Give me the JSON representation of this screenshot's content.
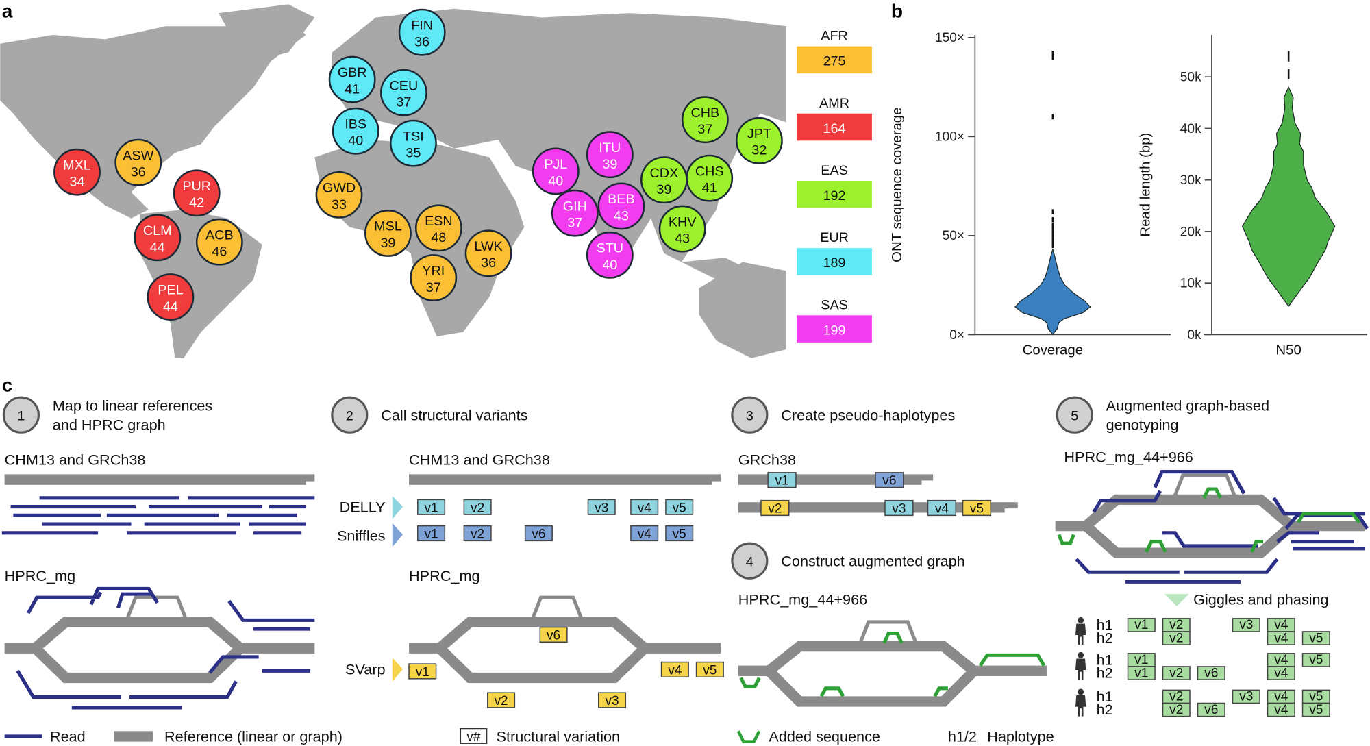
{
  "panel_labels": {
    "a": "a",
    "b": "b",
    "c": "c"
  },
  "colors": {
    "AFR": "#fbbf36",
    "AMR": "#f03c3c",
    "EAS": "#9df02c",
    "EUR": "#5fe9f6",
    "SAS": "#f23cf0",
    "map": "#a8a8a8",
    "read": "#2b2f86",
    "reference": "#8a8a8a",
    "added": "#2ea035",
    "coverage_violin": "#3a7fc0",
    "n50_violin": "#4caf47",
    "delly": "#8fd3df",
    "sniffles": "#7fa3d6",
    "svarp": "#f6d44a",
    "genotype": "#a8dca0"
  },
  "map": {
    "populations": [
      {
        "code": "FIN",
        "n": "36",
        "group": "EUR"
      },
      {
        "code": "GBR",
        "n": "41",
        "group": "EUR"
      },
      {
        "code": "CEU",
        "n": "37",
        "group": "EUR"
      },
      {
        "code": "IBS",
        "n": "40",
        "group": "EUR"
      },
      {
        "code": "TSI",
        "n": "35",
        "group": "EUR"
      },
      {
        "code": "MXL",
        "n": "34",
        "group": "AMR"
      },
      {
        "code": "ASW",
        "n": "36",
        "group": "AFR"
      },
      {
        "code": "PUR",
        "n": "42",
        "group": "AMR"
      },
      {
        "code": "CLM",
        "n": "44",
        "group": "AMR"
      },
      {
        "code": "ACB",
        "n": "46",
        "group": "AFR"
      },
      {
        "code": "PEL",
        "n": "44",
        "group": "AMR"
      },
      {
        "code": "GWD",
        "n": "33",
        "group": "AFR"
      },
      {
        "code": "MSL",
        "n": "39",
        "group": "AFR"
      },
      {
        "code": "ESN",
        "n": "48",
        "group": "AFR"
      },
      {
        "code": "LWK",
        "n": "36",
        "group": "AFR"
      },
      {
        "code": "YRI",
        "n": "37",
        "group": "AFR"
      },
      {
        "code": "PJL",
        "n": "40",
        "group": "SAS"
      },
      {
        "code": "ITU",
        "n": "39",
        "group": "SAS"
      },
      {
        "code": "GIH",
        "n": "37",
        "group": "SAS"
      },
      {
        "code": "BEB",
        "n": "43",
        "group": "SAS"
      },
      {
        "code": "STU",
        "n": "40",
        "group": "SAS"
      },
      {
        "code": "CDX",
        "n": "39",
        "group": "EAS"
      },
      {
        "code": "CHS",
        "n": "41",
        "group": "EAS"
      },
      {
        "code": "CHB",
        "n": "37",
        "group": "EAS"
      },
      {
        "code": "JPT",
        "n": "32",
        "group": "EAS"
      },
      {
        "code": "KHV",
        "n": "43",
        "group": "EAS"
      }
    ],
    "legend": [
      {
        "group": "AFR",
        "total": "275"
      },
      {
        "group": "AMR",
        "total": "164"
      },
      {
        "group": "EAS",
        "total": "192"
      },
      {
        "group": "EUR",
        "total": "189"
      },
      {
        "group": "SAS",
        "total": "199"
      }
    ]
  },
  "chart_data": [
    {
      "type": "violin",
      "category": "Coverage",
      "ylabel": "ONT sequence coverage",
      "ylim": [
        0,
        150
      ],
      "yticks": [
        "0×",
        "50×",
        "100×",
        "150×"
      ],
      "ytick_values": [
        0,
        50,
        100,
        150
      ],
      "density_profile": [
        [
          0,
          0
        ],
        [
          3,
          0.12
        ],
        [
          6,
          0.16
        ],
        [
          8,
          0.3
        ],
        [
          11,
          0.8
        ],
        [
          14,
          1.0
        ],
        [
          17,
          0.85
        ],
        [
          21,
          0.55
        ],
        [
          25,
          0.32
        ],
        [
          29,
          0.2
        ],
        [
          34,
          0.12
        ],
        [
          39,
          0.06
        ],
        [
          43,
          0
        ]
      ],
      "outliers": [
        45,
        47,
        49,
        51,
        53,
        55,
        58,
        62,
        110,
        140,
        142
      ]
    },
    {
      "type": "violin",
      "category": "N50",
      "ylabel": "Read length (bp)",
      "ylim": [
        0,
        57000
      ],
      "yticks": [
        "0k",
        "10k",
        "20k",
        "30k",
        "40k",
        "50k"
      ],
      "ytick_values": [
        0,
        10000,
        20000,
        30000,
        40000,
        50000
      ],
      "density_profile": [
        [
          5500,
          0
        ],
        [
          8000,
          0.2
        ],
        [
          11000,
          0.45
        ],
        [
          13500,
          0.6
        ],
        [
          16500,
          0.8
        ],
        [
          18000,
          0.85
        ],
        [
          21000,
          1.0
        ],
        [
          24000,
          0.8
        ],
        [
          26500,
          0.58
        ],
        [
          28500,
          0.5
        ],
        [
          30000,
          0.4
        ],
        [
          33000,
          0.32
        ],
        [
          35500,
          0.32
        ],
        [
          37000,
          0.24
        ],
        [
          39000,
          0.26
        ],
        [
          41000,
          0.14
        ],
        [
          44000,
          0.08
        ],
        [
          46000,
          0.1
        ],
        [
          48000,
          0
        ]
      ],
      "outliers": [
        50000,
        51000,
        53500,
        54500
      ]
    }
  ],
  "steps": [
    {
      "num": "1",
      "lines": [
        "Map to linear references",
        "and HPRC graph"
      ]
    },
    {
      "num": "2",
      "lines": [
        "Call structural variants",
        ""
      ]
    },
    {
      "num": "3",
      "lines": [
        "Create pseudo-haplotypes",
        ""
      ]
    },
    {
      "num": "4",
      "lines": [
        "Construct augmented graph",
        ""
      ]
    },
    {
      "num": "5",
      "lines": [
        "Augmented graph-based",
        "genotyping"
      ]
    }
  ],
  "labels": {
    "linear1": "CHM13 and GRCh38",
    "linear2": "CHM13 and GRCh38",
    "graph1": "HPRC_mg",
    "graph2": "HPRC_mg",
    "grch38": "GRCh38",
    "aug4": "HPRC_mg_44+966",
    "aug5": "HPRC_mg_44+966",
    "delly": "DELLY",
    "sniffles": "Sniffles",
    "svarp": "SVarp",
    "giggles": "Giggles and phasing"
  },
  "variants": {
    "delly": [
      "v1",
      "v2",
      "v3",
      "v4",
      "v5"
    ],
    "sniffles": [
      "v1",
      "v2",
      "v6",
      "v4",
      "v5"
    ],
    "svarp": [
      "v6",
      "v1",
      "v4",
      "v5",
      "v2",
      "v3"
    ],
    "pseudo_hap1": [
      "v1",
      "v6"
    ],
    "pseudo_hap2": [
      "v2",
      "v3",
      "v4",
      "v5"
    ]
  },
  "genotypes": [
    {
      "h1": [
        "v1",
        "v2",
        "v3",
        "v4"
      ],
      "h2": [
        "v2",
        "v4",
        "v5"
      ]
    },
    {
      "h1": [
        "v1",
        "v4",
        "v5"
      ],
      "h2": [
        "v1",
        "v2",
        "v6",
        "v4"
      ]
    },
    {
      "h1": [
        "v2",
        "v3",
        "v4",
        "v5"
      ],
      "h2": [
        "v2",
        "v6",
        "v4",
        "v5"
      ]
    }
  ],
  "haplotype_labels": [
    "h1",
    "h2"
  ],
  "legend_c": {
    "read": "Read",
    "reference": "Reference (linear or graph)",
    "sv_box": "v#",
    "sv": "Structural variation",
    "added": "Added sequence",
    "hap_key": "h1/2",
    "hap": "Haplotype"
  }
}
